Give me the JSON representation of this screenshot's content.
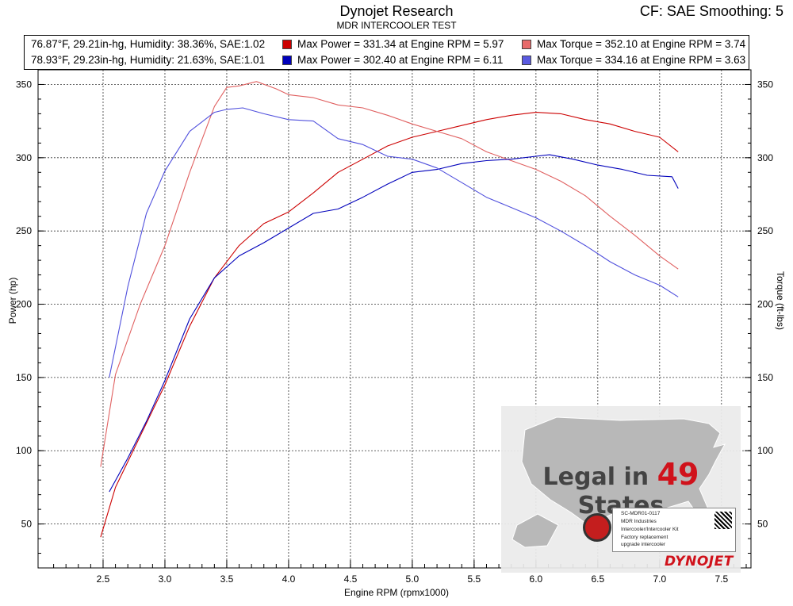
{
  "header": {
    "title": "Dynojet Research",
    "subtitle": "MDR INTERCOOLER TEST",
    "cf_text": "CF: SAE Smoothing: 5"
  },
  "legend": {
    "runs": [
      {
        "conditions": "76.87°F, 29.21in-hg, Humidity: 38.36%, SAE:1.02",
        "power_text": "Max Power = 331.34 at Engine RPM = 5.97",
        "torque_text": "Max Torque = 352.10 at Engine RPM = 3.74",
        "power_color": "#cc0000",
        "torque_color": "#e86b6b"
      },
      {
        "conditions": "78.93°F, 29.23in-hg, Humidity: 21.63%, SAE:1.01",
        "power_text": "Max Power = 302.40 at Engine RPM = 6.11",
        "torque_text": "Max Torque = 334.16 at Engine RPM = 3.63",
        "power_color": "#0000bb",
        "torque_color": "#5a5ae0"
      }
    ]
  },
  "overlay": {
    "legal_prefix": "Legal in",
    "legal_number": "49",
    "legal_suffix": "States",
    "cert_id": "SC-MDR01-0117",
    "cert_company": "MDR Industries",
    "cert_product": "Intercooler/Intercooler Kit",
    "cert_desc_1": "Factory replacement",
    "cert_desc_2": "upgrade intercooler",
    "brand": "DYNOJET"
  },
  "chart_data": {
    "type": "line",
    "xlabel": "Engine RPM (rpmx1000)",
    "ylabel": "Power (hp)",
    "y2label": "Torque (ft-lbs)",
    "xlim": [
      2.0,
      7.7
    ],
    "ylim": [
      20,
      360
    ],
    "x_ticks": [
      2.5,
      3.0,
      3.5,
      4.0,
      4.5,
      5.0,
      5.5,
      6.0,
      6.5,
      7.0,
      7.5
    ],
    "x_tick_labels": [
      "2.5",
      "3.0",
      "3.5",
      "4.0",
      "4.5",
      "5.0",
      "5.5",
      "6.0",
      "6.5",
      "7.0",
      "7.5"
    ],
    "y_ticks": [
      50,
      100,
      150,
      200,
      250,
      300,
      350
    ],
    "y_tick_labels": [
      "50",
      "100",
      "150",
      "200",
      "250",
      "300",
      "350"
    ],
    "grid": true,
    "series": [
      {
        "name": "Max Power = 331.34 at Engine RPM = 5.97",
        "color": "#cc0000",
        "x": [
          2.48,
          2.6,
          2.8,
          3.0,
          3.2,
          3.4,
          3.6,
          3.8,
          4.0,
          4.2,
          4.4,
          4.6,
          4.8,
          5.0,
          5.2,
          5.4,
          5.6,
          5.8,
          6.0,
          6.2,
          6.4,
          6.6,
          6.8,
          7.0,
          7.15
        ],
        "y": [
          41,
          75,
          110,
          145,
          185,
          218,
          240,
          255,
          263,
          276,
          290,
          299,
          308,
          314,
          318,
          322,
          326,
          329,
          331,
          330,
          326,
          323,
          318,
          314,
          304
        ]
      },
      {
        "name": "Max Torque = 352.10 at Engine RPM = 3.74",
        "color": "#e06060",
        "x": [
          2.48,
          2.6,
          2.8,
          3.0,
          3.2,
          3.4,
          3.5,
          3.6,
          3.74,
          3.9,
          4.0,
          4.2,
          4.4,
          4.6,
          4.8,
          5.0,
          5.2,
          5.4,
          5.6,
          5.8,
          6.0,
          6.2,
          6.4,
          6.6,
          6.8,
          7.0,
          7.15
        ],
        "y": [
          89,
          152,
          200,
          240,
          290,
          335,
          348,
          349,
          352,
          347,
          343,
          341,
          336,
          334,
          329,
          323,
          318,
          313,
          304,
          298,
          292,
          284,
          274,
          260,
          247,
          233,
          224
        ]
      },
      {
        "name": "Max Power = 302.40 at Engine RPM = 6.11",
        "color": "#0000bb",
        "x": [
          2.55,
          2.7,
          2.85,
          3.0,
          3.2,
          3.4,
          3.6,
          3.8,
          4.0,
          4.2,
          4.4,
          4.6,
          4.8,
          5.0,
          5.2,
          5.4,
          5.6,
          5.8,
          6.0,
          6.11,
          6.3,
          6.5,
          6.7,
          6.9,
          7.1,
          7.15
        ],
        "y": [
          72,
          95,
          120,
          148,
          190,
          218,
          233,
          242,
          252,
          262,
          265,
          273,
          282,
          290,
          292,
          296,
          298,
          299,
          301,
          302,
          299,
          295,
          292,
          288,
          287,
          279
        ]
      },
      {
        "name": "Max Torque = 334.16 at Engine RPM = 3.63",
        "color": "#5050dd",
        "x": [
          2.55,
          2.7,
          2.85,
          3.0,
          3.2,
          3.4,
          3.5,
          3.63,
          3.8,
          4.0,
          4.2,
          4.4,
          4.6,
          4.8,
          5.0,
          5.2,
          5.4,
          5.6,
          5.8,
          6.0,
          6.2,
          6.4,
          6.6,
          6.8,
          7.0,
          7.15
        ],
        "y": [
          150,
          212,
          262,
          291,
          318,
          331,
          333,
          334,
          330,
          326,
          325,
          313,
          309,
          301,
          299,
          293,
          283,
          273,
          266,
          259,
          250,
          240,
          229,
          220,
          213,
          205
        ]
      }
    ]
  }
}
